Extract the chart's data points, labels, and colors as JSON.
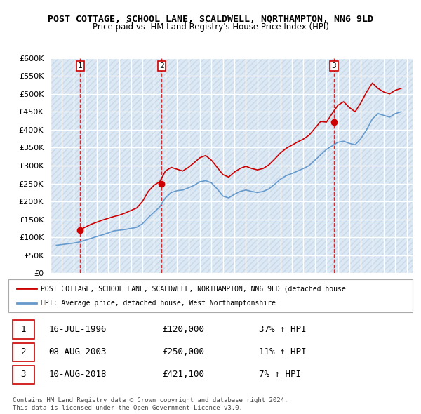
{
  "title": "POST COTTAGE, SCHOOL LANE, SCALDWELL, NORTHAMPTON, NN6 9LD",
  "subtitle": "Price paid vs. HM Land Registry's House Price Index (HPI)",
  "ylim": [
    0,
    600000
  ],
  "yticks": [
    0,
    50000,
    100000,
    150000,
    200000,
    250000,
    300000,
    350000,
    400000,
    450000,
    500000,
    550000,
    600000
  ],
  "background_color": "#ffffff",
  "plot_bg_color": "#dce9f5",
  "grid_color": "#ffffff",
  "hatch_color": "#c8d8e8",
  "sale_dates": [
    "1996-07-16",
    "2003-08-08",
    "2018-08-10"
  ],
  "sale_prices": [
    120000,
    250000,
    421100
  ],
  "sale_labels": [
    "1",
    "2",
    "3"
  ],
  "sale_color": "#cc0000",
  "hpi_color": "#6699cc",
  "legend_red_label": "POST COTTAGE, SCHOOL LANE, SCALDWELL, NORTHAMPTON, NN6 9LD (detached house",
  "legend_blue_label": "HPI: Average price, detached house, West Northamptonshire",
  "table_rows": [
    {
      "num": "1",
      "date": "16-JUL-1996",
      "price": "£120,000",
      "hpi": "37% ↑ HPI"
    },
    {
      "num": "2",
      "date": "08-AUG-2003",
      "price": "£250,000",
      "hpi": "11% ↑ HPI"
    },
    {
      "num": "3",
      "date": "10-AUG-2018",
      "price": "£421,100",
      "hpi": "7% ↑ HPI"
    }
  ],
  "footer": "Contains HM Land Registry data © Crown copyright and database right 2024.\nThis data is licensed under the Open Government Licence v3.0.",
  "hpi_data": {
    "years": [
      1994.5,
      1995.0,
      1995.5,
      1996.0,
      1996.5,
      1997.0,
      1997.5,
      1998.0,
      1998.5,
      1999.0,
      1999.5,
      2000.0,
      2000.5,
      2001.0,
      2001.5,
      2002.0,
      2002.5,
      2003.0,
      2003.5,
      2004.0,
      2004.5,
      2005.0,
      2005.5,
      2006.0,
      2006.5,
      2007.0,
      2007.5,
      2008.0,
      2008.5,
      2009.0,
      2009.5,
      2010.0,
      2010.5,
      2011.0,
      2011.5,
      2012.0,
      2012.5,
      2013.0,
      2013.5,
      2014.0,
      2014.5,
      2015.0,
      2015.5,
      2016.0,
      2016.5,
      2017.0,
      2017.5,
      2018.0,
      2018.5,
      2019.0,
      2019.5,
      2020.0,
      2020.5,
      2021.0,
      2021.5,
      2022.0,
      2022.5,
      2023.0,
      2023.5,
      2024.0,
      2024.5
    ],
    "values": [
      78000,
      80000,
      82000,
      84000,
      87000,
      92000,
      97000,
      102000,
      107000,
      112000,
      118000,
      120000,
      122000,
      125000,
      128000,
      138000,
      155000,
      170000,
      185000,
      210000,
      225000,
      230000,
      232000,
      238000,
      245000,
      255000,
      258000,
      252000,
      235000,
      215000,
      210000,
      220000,
      228000,
      232000,
      228000,
      225000,
      228000,
      235000,
      248000,
      262000,
      272000,
      278000,
      285000,
      292000,
      300000,
      315000,
      330000,
      345000,
      355000,
      365000,
      368000,
      362000,
      358000,
      375000,
      400000,
      430000,
      445000,
      440000,
      435000,
      445000,
      450000
    ]
  },
  "price_data": {
    "years": [
      1994.5,
      1995.0,
      1995.5,
      1996.0,
      1996.5,
      1997.0,
      1997.5,
      1998.0,
      1998.5,
      1999.0,
      1999.5,
      2000.0,
      2000.5,
      2001.0,
      2001.5,
      2002.0,
      2002.5,
      2003.0,
      2003.5,
      2004.0,
      2004.5,
      2005.0,
      2005.5,
      2006.0,
      2006.5,
      2007.0,
      2007.5,
      2008.0,
      2008.5,
      2009.0,
      2009.5,
      2010.0,
      2010.5,
      2011.0,
      2011.5,
      2012.0,
      2012.5,
      2013.0,
      2013.5,
      2014.0,
      2014.5,
      2015.0,
      2015.5,
      2016.0,
      2016.5,
      2017.0,
      2017.5,
      2018.0,
      2018.5,
      2019.0,
      2019.5,
      2020.0,
      2020.5,
      2021.0,
      2021.5,
      2022.0,
      2022.5,
      2023.0,
      2023.5,
      2024.0,
      2024.5
    ],
    "values": [
      null,
      null,
      null,
      null,
      120000,
      128000,
      136000,
      142000,
      148000,
      153000,
      158000,
      162000,
      168000,
      175000,
      182000,
      200000,
      228000,
      245000,
      255000,
      285000,
      295000,
      290000,
      285000,
      295000,
      308000,
      322000,
      328000,
      315000,
      295000,
      275000,
      268000,
      282000,
      292000,
      298000,
      292000,
      288000,
      292000,
      302000,
      318000,
      335000,
      348000,
      357000,
      366000,
      374000,
      385000,
      404000,
      423000,
      421100,
      445000,
      468000,
      478000,
      462000,
      450000,
      475000,
      505000,
      530000,
      515000,
      505000,
      500000,
      510000,
      515000
    ]
  }
}
